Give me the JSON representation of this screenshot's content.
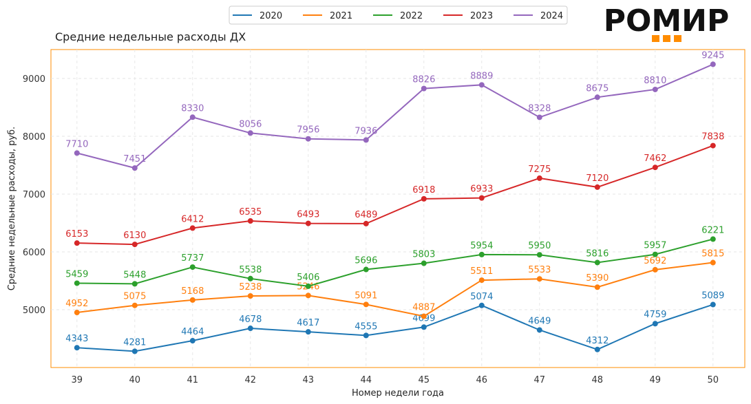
{
  "logo": {
    "text": "РОМИР",
    "color": "#111111",
    "accent_color": "#ff8c00"
  },
  "chart_data": {
    "type": "line",
    "title": "Средние недельные расходы ДХ",
    "xlabel": "Номер недели года",
    "ylabel": "Средние недельные расходы, руб.",
    "x": [
      39,
      40,
      41,
      42,
      43,
      44,
      45,
      46,
      47,
      48,
      49,
      50
    ],
    "ylim": [
      4000,
      9500
    ],
    "yticks": [
      5000,
      6000,
      7000,
      8000,
      9000
    ],
    "grid": true,
    "legend_position": "top-center",
    "frame_color": "#ff8c00",
    "series": [
      {
        "name": "2020",
        "color": "#1f77b4",
        "values": [
          4343,
          4281,
          4464,
          4678,
          4617,
          4555,
          4699,
          5074,
          4649,
          4312,
          4759,
          5089
        ]
      },
      {
        "name": "2021",
        "color": "#ff7f0e",
        "values": [
          4952,
          5075,
          5168,
          5238,
          5246,
          5091,
          4887,
          5511,
          5533,
          5390,
          5692,
          5815
        ]
      },
      {
        "name": "2022",
        "color": "#2ca02c",
        "values": [
          5459,
          5448,
          5737,
          5538,
          5406,
          5696,
          5803,
          5954,
          5950,
          5816,
          5957,
          6221
        ]
      },
      {
        "name": "2023",
        "color": "#d62728",
        "values": [
          6153,
          6130,
          6412,
          6535,
          6493,
          6489,
          6918,
          6933,
          7275,
          7120,
          7462,
          7838
        ]
      },
      {
        "name": "2024",
        "color": "#9467bd",
        "values": [
          7710,
          7451,
          8330,
          8056,
          7956,
          7936,
          8826,
          8889,
          8328,
          8675,
          8810,
          9245
        ]
      }
    ]
  }
}
